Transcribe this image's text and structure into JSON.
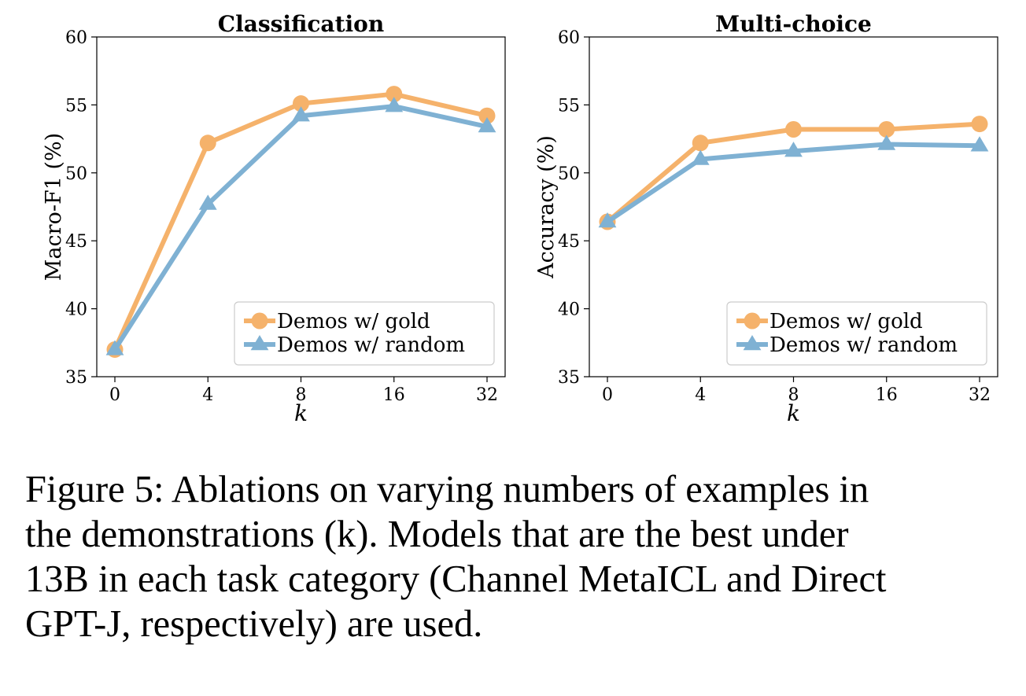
{
  "chart_data": [
    {
      "type": "line",
      "title": "Classification",
      "xlabel": "k",
      "ylabel": "Macro-F1 (%)",
      "categories": [
        "0",
        "4",
        "8",
        "16",
        "32"
      ],
      "ylim": [
        35,
        60
      ],
      "yticks": [
        "35",
        "40",
        "45",
        "50",
        "55",
        "60"
      ],
      "grid": false,
      "legend_position": "bottom-right",
      "series": [
        {
          "name": "Demos w/ gold",
          "values": [
            37.0,
            52.2,
            55.1,
            55.8,
            54.2
          ],
          "marker": "circle",
          "color": "#f5b26b"
        },
        {
          "name": "Demos w/ random",
          "values": [
            37.0,
            47.7,
            54.2,
            54.9,
            53.4
          ],
          "marker": "triangle",
          "color": "#7fb1d3"
        }
      ]
    },
    {
      "type": "line",
      "title": "Multi-choice",
      "xlabel": "k",
      "ylabel": "Accuracy (%)",
      "categories": [
        "0",
        "4",
        "8",
        "16",
        "32"
      ],
      "ylim": [
        35,
        60
      ],
      "yticks": [
        "35",
        "40",
        "45",
        "50",
        "55",
        "60"
      ],
      "grid": false,
      "legend_position": "bottom-right",
      "series": [
        {
          "name": "Demos w/ gold",
          "values": [
            46.4,
            52.2,
            53.2,
            53.2,
            53.6
          ],
          "marker": "circle",
          "color": "#f5b26b"
        },
        {
          "name": "Demos w/ random",
          "values": [
            46.4,
            51.0,
            51.6,
            52.1,
            52.0
          ],
          "marker": "triangle",
          "color": "#7fb1d3"
        }
      ]
    }
  ],
  "caption": {
    "lines": [
      "Figure 5: Ablations on varying numbers of examples in",
      "the demonstrations (k). Models that are the best under",
      "13B in each task category (Channel MetaICL and Direct",
      "GPT-J, respectively) are used."
    ]
  }
}
